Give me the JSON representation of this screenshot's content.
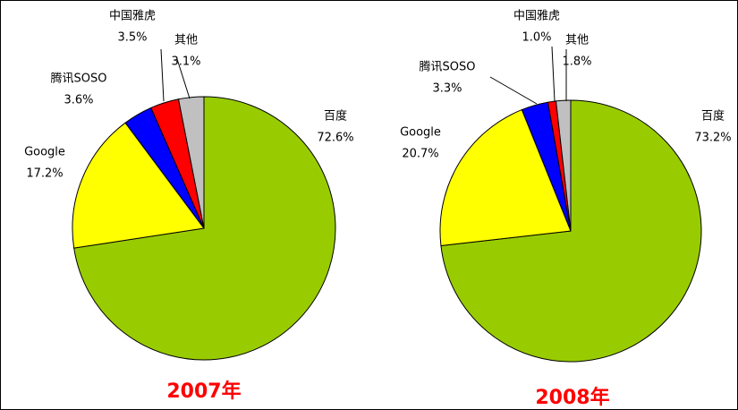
{
  "chart_data": [
    {
      "type": "pie",
      "title": "2007年",
      "categories": [
        "百度",
        "Google",
        "腾讯SOSO",
        "中国雅虎",
        "其他"
      ],
      "values": [
        72.6,
        17.2,
        3.6,
        3.5,
        3.1
      ],
      "value_labels": [
        "72.6%",
        "17.2%",
        "3.6%",
        "3.5%",
        "3.1%"
      ],
      "colors": [
        "#99cc00",
        "#ffff00",
        "#0000ff",
        "#ff0000",
        "#c0c0c0"
      ]
    },
    {
      "type": "pie",
      "title": "2008年",
      "categories": [
        "百度",
        "Google",
        "腾讯SOSO",
        "中国雅虎",
        "其他"
      ],
      "values": [
        73.2,
        20.7,
        3.3,
        1.0,
        1.8
      ],
      "value_labels": [
        "73.2%",
        "20.7%",
        "3.3%",
        "1.0%",
        "1.8%"
      ],
      "colors": [
        "#99cc00",
        "#ffff00",
        "#0000ff",
        "#ff0000",
        "#c0c0c0"
      ]
    }
  ]
}
